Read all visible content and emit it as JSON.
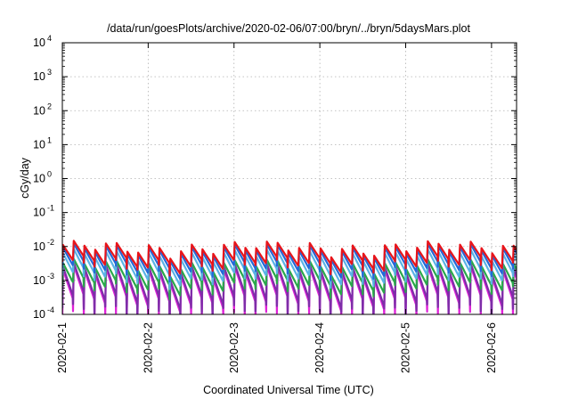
{
  "chart_data": {
    "type": "line",
    "title": "/data/run/goesPlots/archive/2020-02-06/07:00/bryn/../bryn/5daysMars.plot",
    "xlabel": "Coordinated Universal Time (UTC)",
    "ylabel": "cGy/day",
    "yscale": "log",
    "ylim": [
      0.0001,
      10000
    ],
    "y_ticks": [
      {
        "value": 0.0001,
        "base": "10",
        "exp": "-4"
      },
      {
        "value": 0.001,
        "base": "10",
        "exp": "-3"
      },
      {
        "value": 0.01,
        "base": "10",
        "exp": "-2"
      },
      {
        "value": 0.1,
        "base": "10",
        "exp": "-1"
      },
      {
        "value": 1,
        "base": "10",
        "exp": "0"
      },
      {
        "value": 10,
        "base": "10",
        "exp": "1"
      },
      {
        "value": 100,
        "base": "10",
        "exp": "2"
      },
      {
        "value": 1000,
        "base": "10",
        "exp": "3"
      },
      {
        "value": 10000,
        "base": "10",
        "exp": "4"
      }
    ],
    "xlim": [
      "2020-02-01T00:00",
      "2020-02-06T07:00"
    ],
    "x_ticks": [
      {
        "value": "2020-02-01T00:00",
        "label": "2020-02-1"
      },
      {
        "value": "2020-02-02T00:00",
        "label": "2020-02-2"
      },
      {
        "value": "2020-02-03T00:00",
        "label": "2020-02-3"
      },
      {
        "value": "2020-02-04T00:00",
        "label": "2020-02-4"
      },
      {
        "value": "2020-02-05T00:00",
        "label": "2020-02-5"
      },
      {
        "value": "2020-02-06T00:00",
        "label": "2020-02-6"
      }
    ],
    "grid": true,
    "legend": "none",
    "cycle_hours": 3,
    "series": [
      {
        "color": "#e8141a",
        "peak": 0.0095,
        "floor": 0.003,
        "decay": 0.38
      },
      {
        "color": "#2468d8",
        "peak": 0.008,
        "floor": 0.002,
        "decay": 0.44
      },
      {
        "color": "#5ab4e6",
        "peak": 0.0055,
        "floor": 0.0012,
        "decay": 0.48
      },
      {
        "color": "#2aa84a",
        "peak": 0.0028,
        "floor": 0.0006,
        "decay": 0.52
      },
      {
        "color": "#7d2ea8",
        "peak": 0.0022,
        "floor": 0.00013,
        "decay": 0.7
      },
      {
        "color": "#e020d8",
        "peak": 0.0018,
        "floor": 8e-05,
        "decay": 0.8
      }
    ]
  }
}
